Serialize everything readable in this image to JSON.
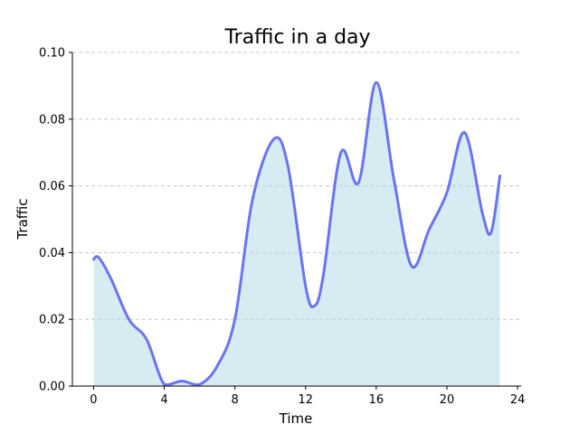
{
  "chart_data": {
    "type": "area",
    "title": "Traffic in a day",
    "xlabel": "Time",
    "ylabel": "Traffic",
    "xlim": [
      -1.2,
      24.2
    ],
    "ylim": [
      0,
      0.1
    ],
    "xticks": [
      0,
      4,
      8,
      12,
      16,
      20,
      24
    ],
    "yticks": [
      0.0,
      0.02,
      0.04,
      0.06,
      0.08,
      0.1
    ],
    "xtick_labels": [
      "0",
      "4",
      "8",
      "12",
      "16",
      "20",
      "24"
    ],
    "ytick_labels": [
      "0.00",
      "0.02",
      "0.04",
      "0.06",
      "0.08",
      "0.10"
    ],
    "grid": {
      "axis": "y",
      "style": "dashed"
    },
    "line_color": "#6b74f0",
    "fill_color": "#add8e6",
    "series": [
      {
        "x": [
          0,
          0.3,
          1,
          2,
          3,
          4,
          5,
          6,
          7,
          8,
          9,
          10.2,
          11,
          12,
          12.5,
          13,
          14,
          15,
          16,
          17,
          18,
          19,
          20,
          21,
          22,
          22.5,
          23
        ],
        "values": [
          0.038,
          0.0385,
          0.032,
          0.02,
          0.014,
          0.0005,
          0.0015,
          0.0005,
          0.006,
          0.02,
          0.056,
          0.074,
          0.066,
          0.03,
          0.024,
          0.033,
          0.07,
          0.061,
          0.091,
          0.062,
          0.036,
          0.047,
          0.058,
          0.076,
          0.052,
          0.046,
          0.063
        ]
      }
    ]
  }
}
